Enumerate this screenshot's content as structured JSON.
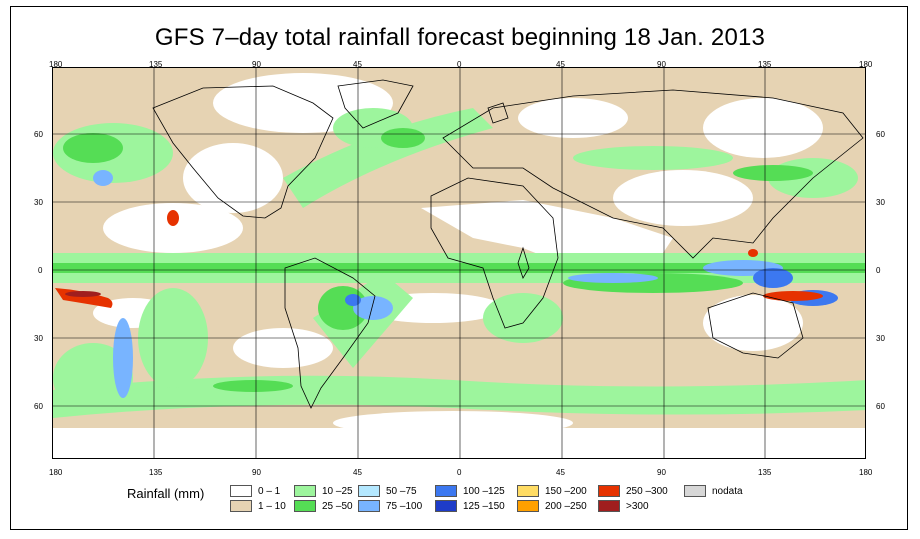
{
  "title": "GFS 7–day total rainfall forecast beginning 18 Jan. 2013",
  "top_lon_labels": [
    "180",
    "135",
    "90",
    "45",
    "0",
    "45",
    "90",
    "135",
    "180"
  ],
  "bottom_lon_labels": [
    "180",
    "135",
    "90",
    "45",
    "0",
    "45",
    "90",
    "135",
    "180"
  ],
  "left_lat_labels": [
    "60",
    "30",
    "0",
    "30",
    "60"
  ],
  "right_lat_labels": [
    "60",
    "30",
    "0",
    "30",
    "60"
  ],
  "legend": {
    "title": "Rainfall (mm)",
    "items": [
      {
        "label": "0 – 1",
        "color": "#ffffff"
      },
      {
        "label": "1 – 10",
        "color": "#e6d3b3"
      },
      {
        "label": "10 –25",
        "color": "#9df59d"
      },
      {
        "label": "25 –50",
        "color": "#55dd55"
      },
      {
        "label": "50 –75",
        "color": "#b4e8ff"
      },
      {
        "label": "75 –100",
        "color": "#78b4ff"
      },
      {
        "label": "100 –125",
        "color": "#3c78f0"
      },
      {
        "label": "125 –150",
        "color": "#1e3cc8"
      },
      {
        "label": "150 –200",
        "color": "#ffdc64"
      },
      {
        "label": "200 –250",
        "color": "#ffa000"
      },
      {
        "label": "250 –300",
        "color": "#e63200"
      },
      {
        "label": ">300",
        "color": "#a01e1e"
      },
      {
        "label": "nodata",
        "color": "#d7d7d7"
      }
    ]
  }
}
